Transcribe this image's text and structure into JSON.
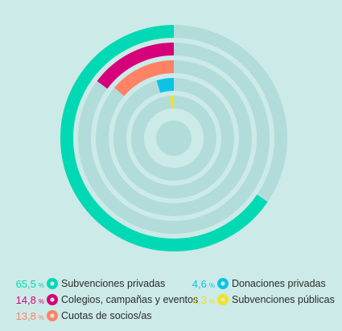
{
  "chart_data": {
    "type": "radial-bar",
    "unit": "%",
    "ylim": [
      0,
      100
    ],
    "track_color": "#b1dcda",
    "background_color": "#cceae7",
    "legend_placement": "bottom",
    "series": [
      {
        "name": "Subvenciones privadas",
        "value": 65.5,
        "value_label": "65,5",
        "color": "#00d9b4"
      },
      {
        "name": "Colegios, campañas y eventos",
        "value": 14.8,
        "value_label": "14,8",
        "color": "#d6007a"
      },
      {
        "name": "Cuotas de socios/as",
        "value": 13.8,
        "value_label": "13,8",
        "color": "#ff8266"
      },
      {
        "name": "Donaciones privadas",
        "value": 4.6,
        "value_label": "4,6",
        "color": "#0cc3e6"
      },
      {
        "name": "Subvenciones públicas",
        "value": 1.3,
        "value_label": "1,3",
        "color": "#f4e21c"
      }
    ]
  }
}
